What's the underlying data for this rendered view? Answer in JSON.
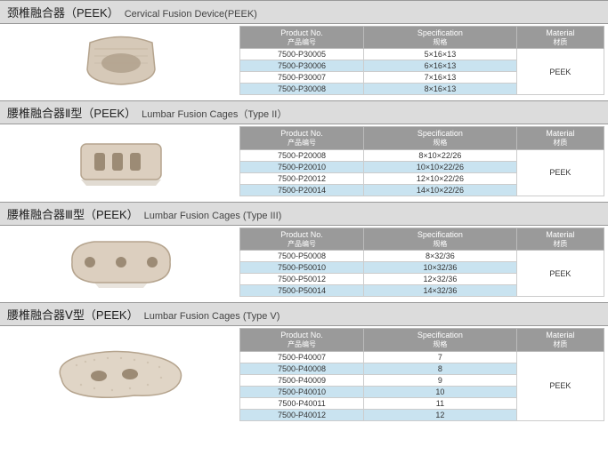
{
  "sections": [
    {
      "title_cn": "颈椎融合器（PEEK）",
      "title_en": "Cervical Fusion Device(PEEK)",
      "image_kind": "cervical",
      "image_fill": "#d6c9b8",
      "image_stroke": "#b5a48e",
      "cols": {
        "pn": "Product No.",
        "pn_sub": "产品编号",
        "sp": "Specification",
        "sp_sub": "规格",
        "mt": "Material",
        "mt_sub": "材质"
      },
      "rows": [
        {
          "pn": "7500-P30005",
          "sp": "5×16×13",
          "alt": false
        },
        {
          "pn": "7500-P30006",
          "sp": "6×16×13",
          "alt": true
        },
        {
          "pn": "7500-P30007",
          "sp": "7×16×13",
          "alt": false
        },
        {
          "pn": "7500-P30008",
          "sp": "8×16×13",
          "alt": true
        }
      ],
      "material": "PEEK"
    },
    {
      "title_cn": "腰椎融合器Ⅱ型（PEEK）",
      "title_en": "Lumbar Fusion Cages（Type II）",
      "image_kind": "lumbar2",
      "image_fill": "#dccfbf",
      "image_stroke": "#b5a48e",
      "cols": {
        "pn": "Product No.",
        "pn_sub": "产品编号",
        "sp": "Specification",
        "sp_sub": "规格",
        "mt": "Material",
        "mt_sub": "材质"
      },
      "rows": [
        {
          "pn": "7500-P20008",
          "sp": "8×10×22/26",
          "alt": false
        },
        {
          "pn": "7500-P20010",
          "sp": "10×10×22/26",
          "alt": true
        },
        {
          "pn": "7500-P20012",
          "sp": "12×10×22/26",
          "alt": false
        },
        {
          "pn": "7500-P20014",
          "sp": "14×10×22/26",
          "alt": true
        }
      ],
      "material": "PEEK"
    },
    {
      "title_cn": "腰椎融合器Ⅲ型（PEEK）",
      "title_en": "Lumbar Fusion Cages (Type III)",
      "image_kind": "lumbar3",
      "image_fill": "#dccfbf",
      "image_stroke": "#b5a48e",
      "cols": {
        "pn": "Product No.",
        "pn_sub": "产品编号",
        "sp": "Specification",
        "sp_sub": "规格",
        "mt": "Material",
        "mt_sub": "材质"
      },
      "rows": [
        {
          "pn": "7500-P50008",
          "sp": "8×32/36",
          "alt": false
        },
        {
          "pn": "7500-P50010",
          "sp": "10×32/36",
          "alt": true
        },
        {
          "pn": "7500-P50012",
          "sp": "12×32/36",
          "alt": false
        },
        {
          "pn": "7500-P50014",
          "sp": "14×32/36",
          "alt": true
        }
      ],
      "material": "PEEK"
    },
    {
      "title_cn": "腰椎融合器Ⅴ型（PEEK）",
      "title_en": "Lumbar Fusion Cages (Type V)",
      "image_kind": "lumbar5",
      "image_fill": "#e0d5c6",
      "image_stroke": "#b5a48e",
      "cols": {
        "pn": "Product No.",
        "pn_sub": "产品编号",
        "sp": "Specification",
        "sp_sub": "规格",
        "mt": "Material",
        "mt_sub": "材质"
      },
      "rows": [
        {
          "pn": "7500-P40007",
          "sp": "7",
          "alt": false
        },
        {
          "pn": "7500-P40008",
          "sp": "8",
          "alt": true
        },
        {
          "pn": "7500-P40009",
          "sp": "9",
          "alt": false
        },
        {
          "pn": "7500-P40010",
          "sp": "10",
          "alt": true
        },
        {
          "pn": "7500-P40011",
          "sp": "11",
          "alt": false
        },
        {
          "pn": "7500-P40012",
          "sp": "12",
          "alt": true
        }
      ],
      "material": "PEEK"
    }
  ]
}
